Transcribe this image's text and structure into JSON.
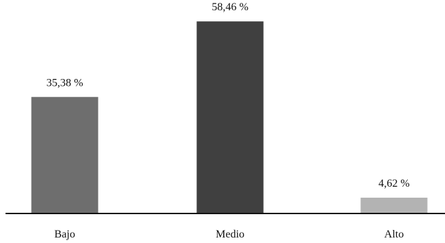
{
  "chart_data": {
    "type": "bar",
    "categories": [
      "Bajo",
      "Medio",
      "Alto"
    ],
    "values": [
      35.38,
      58.46,
      4.62
    ],
    "value_labels": [
      "35,38 %",
      "58,46 %",
      "4,62 %"
    ],
    "colors": [
      "#6e6e6e",
      "#404040",
      "#b3b3b3"
    ],
    "ylim": [
      0,
      65
    ],
    "grid": false,
    "legend": "none"
  }
}
